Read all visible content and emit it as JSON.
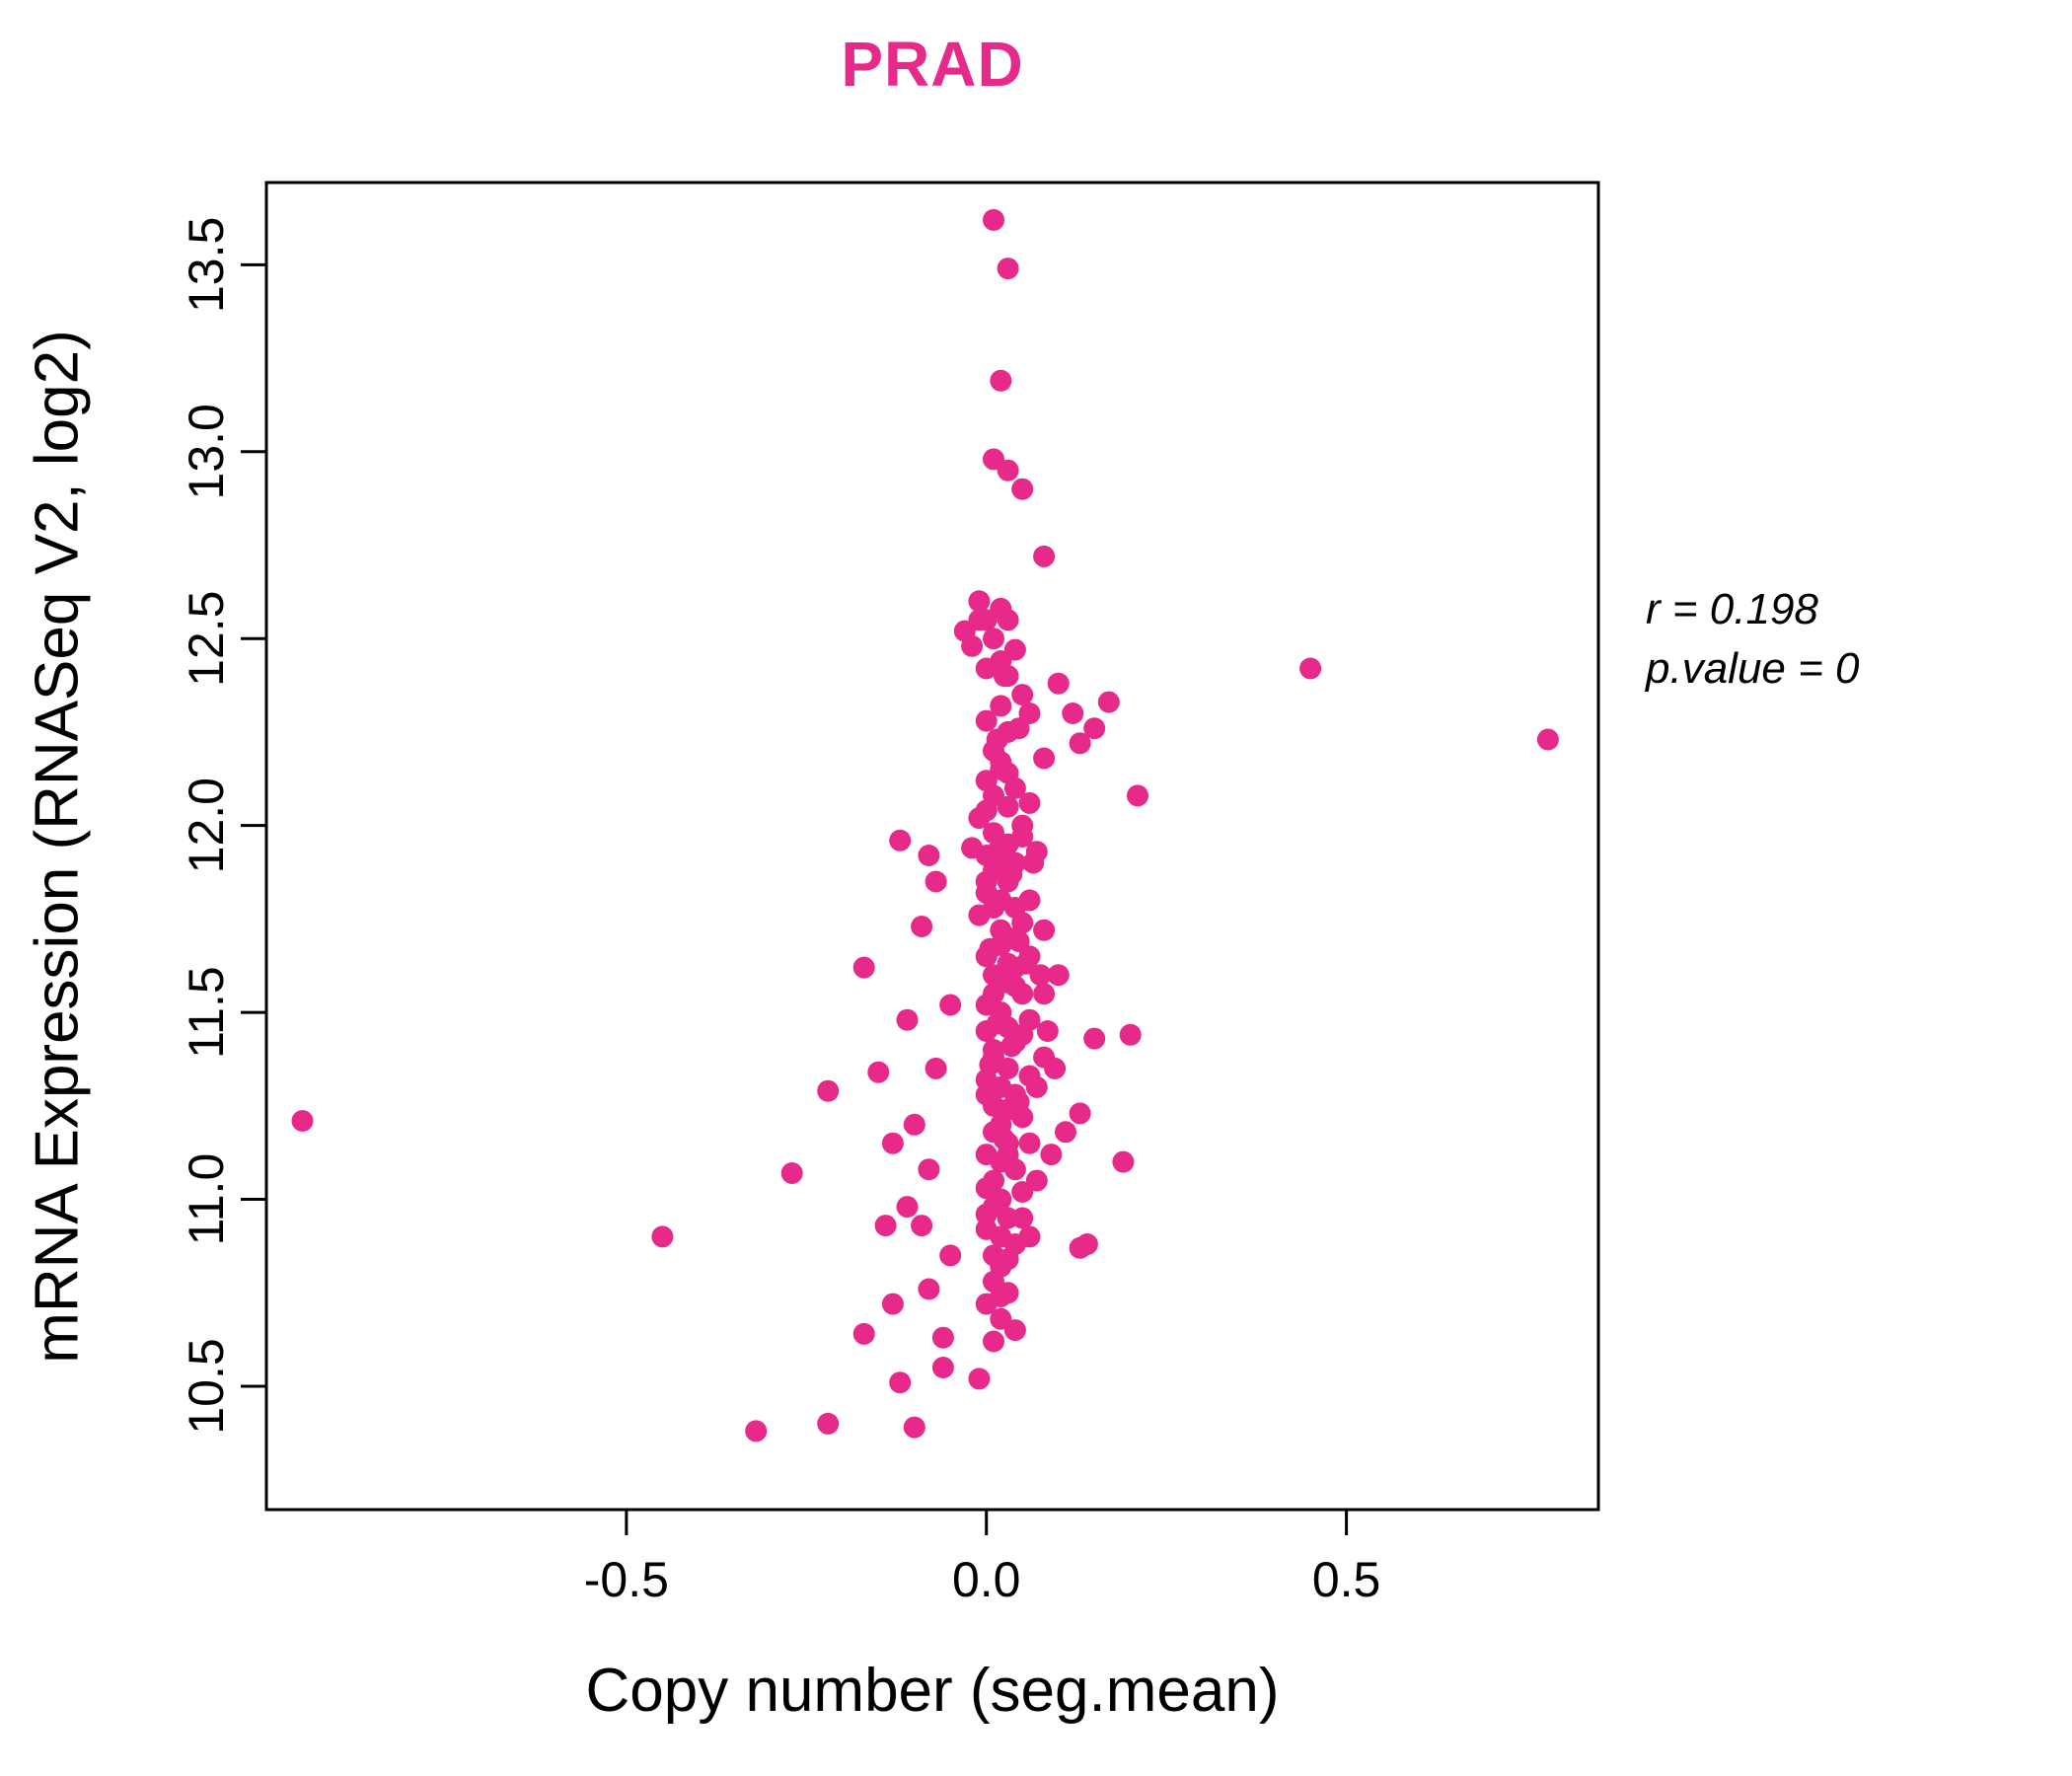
{
  "title": "PRAD",
  "colors": {
    "accent": "#E7298A",
    "axis": "#000000",
    "background": "#FFFFFF"
  },
  "annotation": {
    "line1": "r = 0.198",
    "line2": "p.value = 0"
  },
  "chart_data": {
    "type": "scatter",
    "title": "PRAD",
    "xlabel": "Copy number (seg.mean)",
    "ylabel": "mRNA Expression (RNASeq V2, log2)",
    "xlim": [
      -1.0,
      0.85
    ],
    "ylim": [
      10.17,
      13.72
    ],
    "xticks": [
      -0.5,
      0.0,
      0.5
    ],
    "xtick_labels": [
      "-0.5",
      "0.0",
      "0.5"
    ],
    "yticks": [
      10.5,
      11.0,
      11.5,
      12.0,
      12.5,
      13.0,
      13.5
    ],
    "ytick_labels": [
      "10.5",
      "11.0",
      "11.5",
      "12.0",
      "12.5",
      "13.0",
      "13.5"
    ],
    "annotations": [
      "r = 0.198",
      "p.value = 0"
    ],
    "legend": null,
    "grid": false,
    "point_color": "#E7298A",
    "points": [
      [
        -0.95,
        11.21
      ],
      [
        -0.45,
        10.9
      ],
      [
        0.45,
        12.42
      ],
      [
        0.78,
        12.23
      ],
      [
        0.01,
        13.62
      ],
      [
        0.03,
        13.49
      ],
      [
        0.02,
        13.19
      ],
      [
        0.01,
        12.98
      ],
      [
        0.03,
        12.95
      ],
      [
        0.05,
        12.9
      ],
      [
        0.08,
        12.72
      ],
      [
        -0.01,
        12.6
      ],
      [
        0.02,
        12.58
      ],
      [
        0.0,
        12.55
      ],
      [
        -0.03,
        12.52
      ],
      [
        0.03,
        12.55
      ],
      [
        0.01,
        12.5
      ],
      [
        -0.02,
        12.48
      ],
      [
        0.04,
        12.47
      ],
      [
        0.02,
        12.44
      ],
      [
        0.0,
        12.42
      ],
      [
        -0.01,
        12.55
      ],
      [
        0.03,
        12.4
      ],
      [
        0.1,
        12.38
      ],
      [
        0.17,
        12.33
      ],
      [
        0.12,
        12.3
      ],
      [
        0.15,
        12.26
      ],
      [
        0.13,
        12.22
      ],
      [
        0.05,
        12.35
      ],
      [
        0.02,
        12.32
      ],
      [
        0.0,
        12.28
      ],
      [
        0.03,
        12.25
      ],
      [
        0.01,
        12.2
      ],
      [
        0.06,
        12.3
      ],
      [
        0.08,
        12.18
      ],
      [
        0.21,
        12.08
      ],
      [
        0.02,
        12.15
      ],
      [
        0.0,
        12.12
      ],
      [
        0.04,
        12.1
      ],
      [
        0.01,
        12.08
      ],
      [
        0.03,
        12.05
      ],
      [
        -0.01,
        12.02
      ],
      [
        0.05,
        12.0
      ],
      [
        0.02,
        12.17
      ],
      [
        0.06,
        12.06
      ],
      [
        0.0,
        12.04
      ],
      [
        0.03,
        12.14
      ],
      [
        -0.12,
        11.96
      ],
      [
        -0.08,
        11.92
      ],
      [
        0.01,
        11.98
      ],
      [
        0.03,
        11.95
      ],
      [
        0.0,
        11.92
      ],
      [
        0.02,
        11.9
      ],
      [
        0.05,
        11.97
      ],
      [
        -0.02,
        11.94
      ],
      [
        0.04,
        11.9
      ],
      [
        0.07,
        11.93
      ],
      [
        -0.07,
        11.85
      ],
      [
        0.01,
        11.88
      ],
      [
        0.03,
        11.85
      ],
      [
        0.0,
        11.82
      ],
      [
        0.02,
        11.8
      ],
      [
        0.04,
        11.78
      ],
      [
        -0.01,
        11.76
      ],
      [
        0.05,
        11.74
      ],
      [
        0.02,
        11.72
      ],
      [
        0.0,
        11.85
      ],
      [
        0.03,
        11.7
      ],
      [
        0.06,
        11.8
      ],
      [
        -0.09,
        11.73
      ],
      [
        0.01,
        11.78
      ],
      [
        0.08,
        11.72
      ],
      [
        0.02,
        11.68
      ],
      [
        0.0,
        11.65
      ],
      [
        0.04,
        11.62
      ],
      [
        -0.17,
        11.62
      ],
      [
        0.01,
        11.6
      ],
      [
        0.03,
        11.58
      ],
      [
        0.05,
        11.55
      ],
      [
        0.0,
        11.52
      ],
      [
        0.02,
        11.5
      ],
      [
        -0.05,
        11.52
      ],
      [
        0.06,
        11.65
      ],
      [
        0.04,
        11.57
      ],
      [
        0.01,
        11.55
      ],
      [
        0.08,
        11.55
      ],
      [
        0.1,
        11.6
      ],
      [
        0.03,
        11.63
      ],
      [
        0.2,
        11.44
      ],
      [
        0.15,
        11.43
      ],
      [
        0.02,
        11.48
      ],
      [
        0.0,
        11.45
      ],
      [
        -0.11,
        11.48
      ],
      [
        0.04,
        11.42
      ],
      [
        0.01,
        11.4
      ],
      [
        0.03,
        11.46
      ],
      [
        0.05,
        11.44
      ],
      [
        0.06,
        11.48
      ],
      [
        -0.07,
        11.35
      ],
      [
        -0.15,
        11.34
      ],
      [
        0.01,
        11.38
      ],
      [
        0.03,
        11.35
      ],
      [
        0.0,
        11.32
      ],
      [
        0.02,
        11.3
      ],
      [
        -0.22,
        11.29
      ],
      [
        0.04,
        11.28
      ],
      [
        0.01,
        11.25
      ],
      [
        0.05,
        11.22
      ],
      [
        0.02,
        11.2
      ],
      [
        0.0,
        11.28
      ],
      [
        0.06,
        11.33
      ],
      [
        0.03,
        11.24
      ],
      [
        0.07,
        11.3
      ],
      [
        0.08,
        11.38
      ],
      [
        0.13,
        11.23
      ],
      [
        0.11,
        11.18
      ],
      [
        -0.1,
        11.2
      ],
      [
        -0.13,
        11.15
      ],
      [
        -0.27,
        11.07
      ],
      [
        0.19,
        11.1
      ],
      [
        0.01,
        11.18
      ],
      [
        0.03,
        11.15
      ],
      [
        0.0,
        11.12
      ],
      [
        0.02,
        11.1
      ],
      [
        0.04,
        11.08
      ],
      [
        0.01,
        11.05
      ],
      [
        0.05,
        11.02
      ],
      [
        0.02,
        11.0
      ],
      [
        -0.08,
        11.08
      ],
      [
        0.06,
        11.15
      ],
      [
        0.0,
        11.03
      ],
      [
        0.03,
        11.12
      ],
      [
        0.07,
        11.05
      ],
      [
        0.09,
        11.12
      ],
      [
        -0.11,
        10.98
      ],
      [
        -0.14,
        10.93
      ],
      [
        0.14,
        10.88
      ],
      [
        0.01,
        10.98
      ],
      [
        0.03,
        10.95
      ],
      [
        0.0,
        10.92
      ],
      [
        0.02,
        10.9
      ],
      [
        0.04,
        10.88
      ],
      [
        0.01,
        10.85
      ],
      [
        0.05,
        10.95
      ],
      [
        0.02,
        10.82
      ],
      [
        -0.05,
        10.85
      ],
      [
        -0.09,
        10.93
      ],
      [
        0.06,
        10.9
      ],
      [
        0.13,
        10.87
      ],
      [
        0.0,
        10.96
      ],
      [
        0.03,
        10.84
      ],
      [
        -0.06,
        10.63
      ],
      [
        -0.17,
        10.64
      ],
      [
        -0.13,
        10.72
      ],
      [
        -0.08,
        10.76
      ],
      [
        0.01,
        10.78
      ],
      [
        0.03,
        10.75
      ],
      [
        0.0,
        10.72
      ],
      [
        0.02,
        10.68
      ],
      [
        0.04,
        10.65
      ],
      [
        0.01,
        10.62
      ],
      [
        0.02,
        10.74
      ],
      [
        -0.32,
        10.38
      ],
      [
        -0.22,
        10.4
      ],
      [
        -0.1,
        10.39
      ],
      [
        -0.12,
        10.51
      ],
      [
        -0.01,
        10.52
      ],
      [
        -0.06,
        10.55
      ],
      [
        0.015,
        11.93
      ],
      [
        0.035,
        11.87
      ],
      [
        0.005,
        11.67
      ],
      [
        0.045,
        11.69
      ],
      [
        0.025,
        11.59
      ],
      [
        0.055,
        11.63
      ],
      [
        0.015,
        11.47
      ],
      [
        0.035,
        11.41
      ],
      [
        0.005,
        11.36
      ],
      [
        0.045,
        11.26
      ],
      [
        0.025,
        11.16
      ],
      [
        0.015,
        12.23
      ],
      [
        0.045,
        12.26
      ],
      [
        0.025,
        12.4
      ],
      [
        0.065,
        11.9
      ],
      [
        0.075,
        11.6
      ],
      [
        0.085,
        11.45
      ],
      [
        0.095,
        11.35
      ]
    ]
  }
}
